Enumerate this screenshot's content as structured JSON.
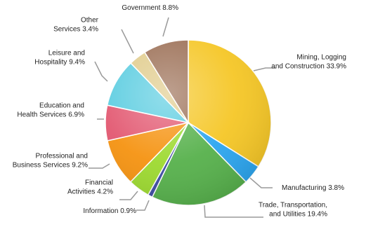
{
  "chart_data": {
    "type": "pie",
    "title": "",
    "slices": [
      {
        "label": "Mining, Logging and Construction",
        "value": 33.9,
        "color": "#f5c624"
      },
      {
        "label": "Manufacturing",
        "value": 3.8,
        "color": "#2aa5ef"
      },
      {
        "label": "Trade, Transportation, and Utilities",
        "value": 19.4,
        "color": "#55b04a"
      },
      {
        "label": "Information",
        "value": 0.9,
        "color": "#3b4aa2"
      },
      {
        "label": "Financial Activities",
        "value": 4.2,
        "color": "#9cd92e"
      },
      {
        "label": "Professional and Business Services",
        "value": 9.2,
        "color": "#f5920f"
      },
      {
        "label": "Education and Health Services",
        "value": 6.9,
        "color": "#e2566f"
      },
      {
        "label": "Leisure and Hospitality",
        "value": 9.4,
        "color": "#59cce0"
      },
      {
        "label": "Other Services",
        "value": 3.4,
        "color": "#e0cb8a"
      },
      {
        "label": "Government",
        "value": 8.8,
        "color": "#9a6d53"
      }
    ]
  },
  "labels": [
    {
      "lines": [
        "Mining, Logging",
        "and Construction 33.9%"
      ]
    },
    {
      "lines": [
        "Manufacturing 3.8%"
      ]
    },
    {
      "lines": [
        "Trade, Transportation,",
        "and Utilities 19.4%"
      ]
    },
    {
      "lines": [
        "Information 0.9%"
      ]
    },
    {
      "lines": [
        "Financial",
        "Activities 4.2%"
      ]
    },
    {
      "lines": [
        "Professional and",
        "Business Services 9.2%"
      ]
    },
    {
      "lines": [
        "Education and",
        "Health Services 6.9%"
      ]
    },
    {
      "lines": [
        "Leisure and",
        "Hospitality 9.4%"
      ]
    },
    {
      "lines": [
        "Other",
        "Services 3.4%"
      ]
    },
    {
      "lines": [
        "Government 8.8%"
      ]
    }
  ]
}
